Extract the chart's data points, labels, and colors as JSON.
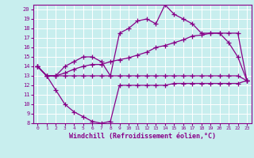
{
  "xlabel": "Windchill (Refroidissement éolien,°C)",
  "background_color": "#c8eeee",
  "grid_color": "#ffffff",
  "line_color": "#880088",
  "xlim": [
    -0.5,
    23.5
  ],
  "ylim": [
    8,
    20.5
  ],
  "xticks": [
    0,
    1,
    2,
    3,
    4,
    5,
    6,
    7,
    8,
    9,
    10,
    11,
    12,
    13,
    14,
    15,
    16,
    17,
    18,
    19,
    20,
    21,
    22,
    23
  ],
  "yticks": [
    8,
    9,
    10,
    11,
    12,
    13,
    14,
    15,
    16,
    17,
    18,
    19,
    20
  ],
  "series1_x": [
    0,
    1,
    2,
    3,
    4,
    5,
    6,
    7,
    8,
    9,
    10,
    11,
    12,
    13,
    14,
    15,
    16,
    17,
    18,
    19,
    20,
    21,
    22,
    23
  ],
  "series1_y": [
    14,
    13,
    13,
    13,
    13,
    13,
    13,
    13,
    13,
    13,
    13,
    13,
    13,
    13,
    13,
    13,
    13,
    13,
    13,
    13,
    13,
    13,
    13,
    12.5
  ],
  "series2_x": [
    0,
    1,
    2,
    3,
    4,
    5,
    6,
    7,
    8,
    9,
    10,
    11,
    12,
    13,
    14,
    15,
    16,
    17,
    18,
    19,
    20,
    21,
    22,
    23
  ],
  "series2_y": [
    14,
    13,
    13,
    13.3,
    13.7,
    14,
    14.2,
    14.2,
    14.5,
    14.7,
    14.9,
    15.2,
    15.5,
    16.0,
    16.2,
    16.5,
    16.8,
    17.2,
    17.3,
    17.5,
    17.5,
    17.5,
    17.5,
    12.5
  ],
  "series3_x": [
    0,
    1,
    2,
    3,
    4,
    5,
    6,
    7,
    8,
    9,
    10,
    11,
    12,
    13,
    14,
    15,
    16,
    17,
    18,
    19,
    20,
    21,
    22,
    23
  ],
  "series3_y": [
    14,
    13,
    11.5,
    10,
    9.2,
    8.7,
    8.2,
    8.0,
    8.2,
    12.0,
    12.0,
    12.0,
    12.0,
    12.0,
    12.0,
    12.2,
    12.2,
    12.2,
    12.2,
    12.2,
    12.2,
    12.2,
    12.2,
    12.5
  ],
  "series4_x": [
    0,
    1,
    2,
    3,
    4,
    5,
    6,
    7,
    8,
    9,
    10,
    11,
    12,
    13,
    14,
    15,
    16,
    17,
    18,
    19,
    20,
    21,
    22,
    23
  ],
  "series4_y": [
    14,
    13,
    13,
    14,
    14.5,
    15,
    15,
    14.5,
    13,
    17.5,
    18,
    18.8,
    19,
    18.5,
    20.5,
    19.5,
    19,
    18.5,
    17.5,
    17.5,
    17.5,
    16.5,
    15,
    12.5
  ]
}
